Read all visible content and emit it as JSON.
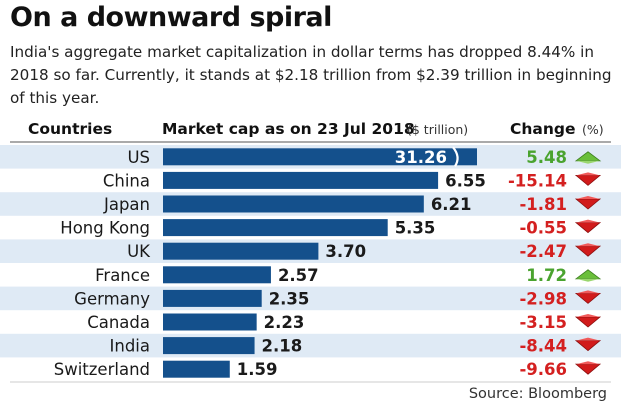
{
  "title": "On a downward spiral",
  "subtitle": "India's aggregate market capitalization in dollar terms has dropped 8.44% in 2018 so far. Currently, it stands at $2.18 trillion from $2.39 trillion in beginning of this year.",
  "source": "Source: Bloomberg",
  "colors": {
    "bar": "#14508c",
    "band": "#dfeaf5",
    "negative": "#d42020",
    "positive": "#4aa32f",
    "arrow_down": "#d11b1b",
    "arrow_up": "#6abf3a"
  },
  "chart_data": {
    "type": "bar",
    "orientation": "horizontal",
    "header": {
      "countries": "Countries",
      "market_cap": "Market cap as on 23 Jul 2018",
      "market_cap_unit": "($ trillion)",
      "change": "Change",
      "change_unit": "(%)"
    },
    "categories": [
      "US",
      "China",
      "Japan",
      "Hong Kong",
      "UK",
      "France",
      "Germany",
      "Canada",
      "India",
      "Switzerland"
    ],
    "values": [
      31.26,
      6.55,
      6.21,
      5.35,
      3.7,
      2.57,
      2.35,
      2.23,
      2.18,
      1.59
    ],
    "value_labels": [
      "31.26",
      "6.55",
      "6.21",
      "5.35",
      "3.70",
      "2.57",
      "2.35",
      "2.23",
      "2.18",
      "1.59"
    ],
    "axis_break_on": "US",
    "change": [
      5.48,
      -15.14,
      -1.81,
      -0.55,
      -2.47,
      1.72,
      -2.98,
      -3.15,
      -8.44,
      -9.66
    ],
    "change_labels": [
      "5.48",
      "-15.14",
      "-1.81",
      "-0.55",
      "-2.47",
      "1.72",
      "-2.98",
      "-3.15",
      "-8.44",
      "-9.66"
    ]
  }
}
